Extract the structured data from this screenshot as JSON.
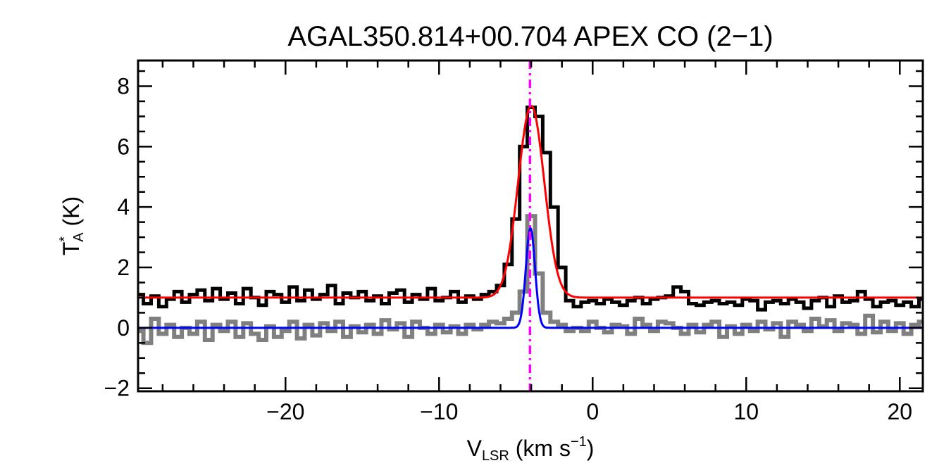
{
  "chart_data": {
    "type": "line",
    "title": "AGAL350.814+00.704  APEX CO (2−1)",
    "xlabel": {
      "main": "V",
      "sub": "LSR",
      "rest": " (km s",
      "sup": "−1",
      "end": ")"
    },
    "ylabel": {
      "main": "T",
      "sup": "*",
      "sub": "A",
      "rest": " (K)"
    },
    "xlim": [
      -29.6,
      21.5
    ],
    "ylim": [
      -2.1,
      8.85
    ],
    "xticks": [
      -20,
      -10,
      0,
      10,
      20
    ],
    "xtick_labels": [
      "−20",
      "−10",
      "0",
      "10",
      "20"
    ],
    "yticks": [
      -2,
      0,
      2,
      4,
      6,
      8
    ],
    "ytick_labels": [
      "−2",
      "0",
      "2",
      "4",
      "6",
      "8"
    ],
    "x_minor_step": 2,
    "y_minor_step": 0.5,
    "grid": false,
    "x_start": -29.5,
    "x_step": 0.5,
    "series": [
      {
        "style": "histogram",
        "color": "#000000",
        "values": [
          1.1,
          0.8,
          1.05,
          0.7,
          0.95,
          1.2,
          0.85,
          1.1,
          1.25,
          0.9,
          1.3,
          0.95,
          1.15,
          0.8,
          1.3,
          1.0,
          0.75,
          1.2,
          1.1,
          0.85,
          1.35,
          0.9,
          1.25,
          0.95,
          1.1,
          1.4,
          0.8,
          1.15,
          1.0,
          1.2,
          0.9,
          1.05,
          0.8,
          1.15,
          1.25,
          0.85,
          1.1,
          0.95,
          1.3,
          0.9,
          1.0,
          1.2,
          0.85,
          1.05,
          0.95,
          1.1,
          1.2,
          1.4,
          2.1,
          3.6,
          6.0,
          7.3,
          7.0,
          5.8,
          4.0,
          2.0,
          0.9,
          0.7,
          0.85,
          0.9,
          0.8,
          0.95,
          0.85,
          0.75,
          0.9,
          1.0,
          0.8,
          0.95,
          1.0,
          1.05,
          1.35,
          1.2,
          0.8,
          0.75,
          0.85,
          0.9,
          0.8,
          0.85,
          0.75,
          0.95,
          0.9,
          0.6,
          0.85,
          0.9,
          0.8,
          0.95,
          0.85,
          0.65,
          0.9,
          1.0,
          0.7,
          1.05,
          0.85,
          0.9,
          1.2,
          0.95,
          0.7,
          0.85,
          0.9,
          0.75,
          0.85,
          0.7,
          0.95
        ]
      },
      {
        "style": "histogram",
        "color": "#808080",
        "values": [
          -0.1,
          -0.5,
          0.3,
          -0.2,
          0.1,
          -0.3,
          0.0,
          -0.2,
          0.2,
          -0.4,
          0.1,
          -0.1,
          0.2,
          -0.3,
          0.15,
          -0.2,
          -0.4,
          0.05,
          -0.3,
          -0.1,
          0.2,
          -0.35,
          0.1,
          -0.25,
          0.15,
          -0.1,
          0.2,
          -0.3,
          0.05,
          -0.15,
          0.1,
          -0.2,
          0.25,
          -0.05,
          0.15,
          -0.3,
          0.2,
          0.0,
          -0.2,
          0.1,
          -0.15,
          0.05,
          -0.2,
          0.1,
          -0.05,
          0.1,
          0.2,
          0.15,
          0.3,
          0.5,
          1.2,
          3.7,
          1.8,
          0.5,
          0.2,
          0.1,
          -0.1,
          0.0,
          -0.1,
          0.2,
          0.0,
          -0.15,
          0.1,
          0.05,
          -0.2,
          0.3,
          0.1,
          -0.1,
          0.2,
          0.15,
          0.0,
          -0.2,
          0.1,
          -0.15,
          0.1,
          0.2,
          -0.3,
          0.05,
          -0.2,
          0.1,
          -0.1,
          0.2,
          -0.05,
          0.15,
          -0.3,
          0.2,
          0.1,
          -0.1,
          0.3,
          0.05,
          0.25,
          -0.1,
          0.15,
          0.1,
          -0.2,
          0.4,
          -0.15,
          0.2,
          -0.1,
          0.15,
          -0.2,
          0.1,
          0.2
        ]
      }
    ],
    "fits": [
      {
        "color": "#ff0000",
        "baseline": 1.0,
        "amplitude": 6.35,
        "center": -4.0,
        "fwhm": 2.0
      },
      {
        "color": "#0000ff",
        "baseline": 0.0,
        "amplitude": 3.3,
        "center": -4.05,
        "fwhm": 0.7
      }
    ],
    "vline": {
      "x": -4.08,
      "color": "#ff00ff",
      "style": "dash-dot"
    }
  }
}
